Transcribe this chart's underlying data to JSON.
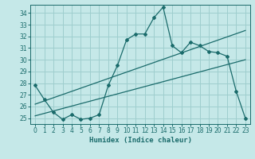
{
  "xlabel": "Humidex (Indice chaleur)",
  "ylabel": "",
  "bg_color": "#c5e8e8",
  "grid_color": "#9ecece",
  "line_color": "#1a6b6b",
  "xlim": [
    -0.5,
    23.5
  ],
  "ylim": [
    24.5,
    34.7
  ],
  "xticks": [
    0,
    1,
    2,
    3,
    4,
    5,
    6,
    7,
    8,
    9,
    10,
    11,
    12,
    13,
    14,
    15,
    16,
    17,
    18,
    19,
    20,
    21,
    22,
    23
  ],
  "yticks": [
    25,
    26,
    27,
    28,
    29,
    30,
    31,
    32,
    33,
    34
  ],
  "line1_x": [
    0,
    1,
    2,
    3,
    4,
    5,
    6,
    7,
    8,
    9,
    10,
    11,
    12,
    13,
    14,
    15,
    16,
    17,
    18,
    19,
    20,
    21,
    22,
    23
  ],
  "line1_y": [
    27.8,
    26.6,
    25.5,
    24.9,
    25.3,
    24.9,
    25.0,
    25.3,
    27.8,
    29.5,
    31.7,
    32.2,
    32.2,
    33.6,
    34.5,
    31.2,
    30.6,
    31.5,
    31.2,
    30.7,
    30.6,
    30.3,
    27.3,
    25.0
  ],
  "line2_x": [
    0,
    23
  ],
  "line2_y": [
    25.2,
    30.0
  ],
  "line3_x": [
    0,
    23
  ],
  "line3_y": [
    26.2,
    32.5
  ],
  "xlabel_fontsize": 6.5,
  "tick_fontsize": 5.5
}
